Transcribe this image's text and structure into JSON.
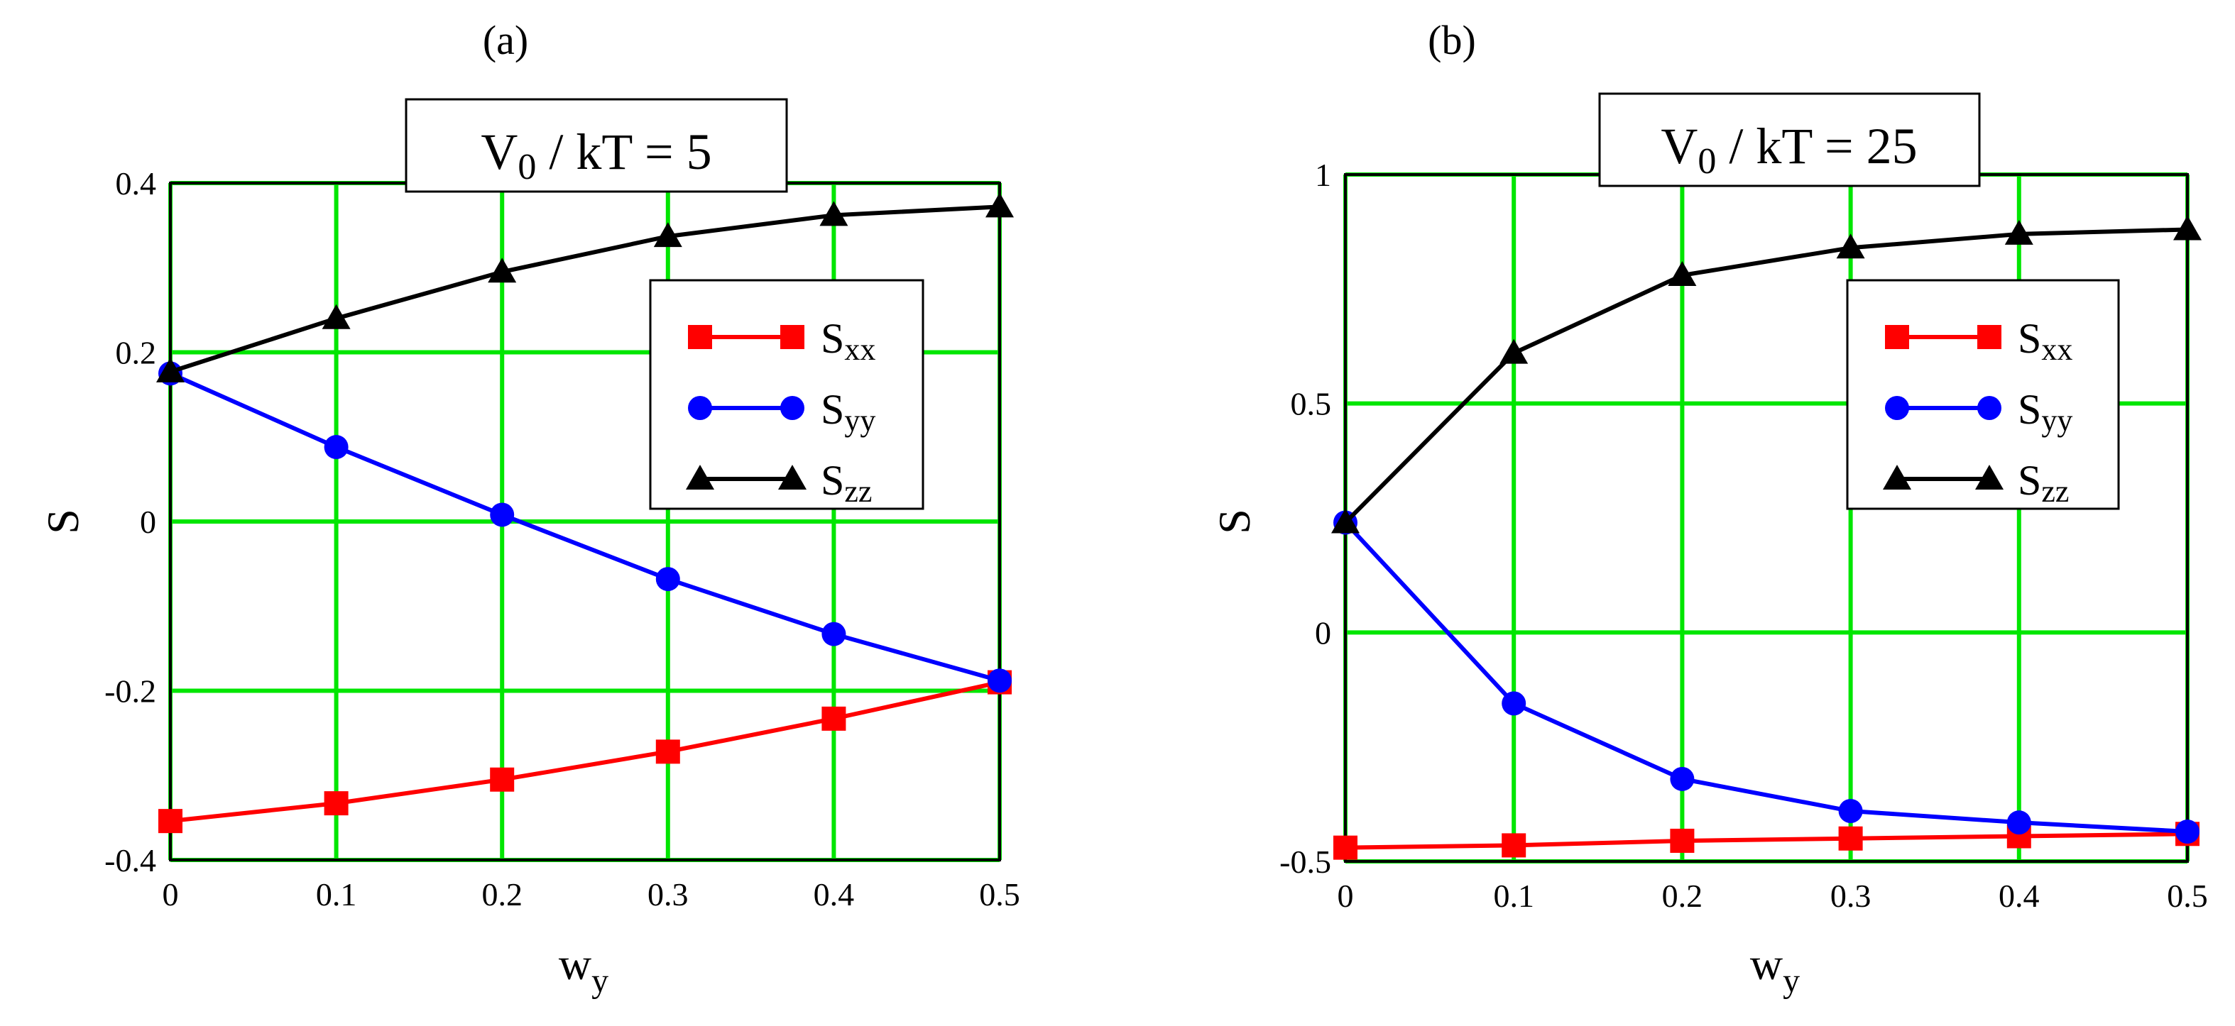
{
  "panels": [
    {
      "panel_label": "(a)",
      "title_main": "V",
      "title_sub": "0",
      "title_rest": " / kT = 5",
      "xlabel_main": "w",
      "xlabel_sub": "y",
      "ylabel": "S"
    },
    {
      "panel_label": "(b)",
      "title_main": "V",
      "title_sub": "0",
      "title_rest": " / kT = 25",
      "xlabel_main": "w",
      "xlabel_sub": "y",
      "ylabel": "S"
    }
  ],
  "legend": [
    {
      "main": "S",
      "sub": "xx"
    },
    {
      "main": "S",
      "sub": "yy"
    },
    {
      "main": "S",
      "sub": "zz"
    }
  ],
  "colors": {
    "grid": "#00e600",
    "s_xx": "#ff0000",
    "s_yy": "#0000ff",
    "s_zz": "#000000"
  },
  "chart_data": [
    {
      "type": "line",
      "x": [
        0,
        0.1,
        0.2,
        0.3,
        0.4,
        0.5
      ],
      "xlim": [
        0,
        0.5
      ],
      "ylim": [
        -0.4,
        0.4
      ],
      "xticks": [
        "0",
        "0.1",
        "0.2",
        "0.3",
        "0.4",
        "0.5"
      ],
      "yticks": [
        "-0.4",
        "-0.2",
        "0",
        "0.2",
        "0.4"
      ],
      "ytick_values": [
        -0.4,
        -0.2,
        0,
        0.2,
        0.4
      ],
      "grid": true,
      "legend_position": "upper-right",
      "series": [
        {
          "name": "S_xx",
          "marker": "square",
          "values": [
            -0.354,
            -0.333,
            -0.305,
            -0.272,
            -0.233,
            -0.19
          ]
        },
        {
          "name": "S_yy",
          "marker": "circle",
          "values": [
            0.175,
            0.088,
            0.008,
            -0.068,
            -0.133,
            -0.188
          ]
        },
        {
          "name": "S_zz",
          "marker": "triangle",
          "values": [
            0.177,
            0.24,
            0.295,
            0.337,
            0.362,
            0.372
          ]
        }
      ]
    },
    {
      "type": "line",
      "x": [
        0,
        0.1,
        0.2,
        0.3,
        0.4,
        0.5
      ],
      "xlim": [
        0,
        0.5
      ],
      "ylim": [
        -0.5,
        1
      ],
      "xticks": [
        "0",
        "0.1",
        "0.2",
        "0.3",
        "0.4",
        "0.5"
      ],
      "yticks": [
        "-0.5",
        "0",
        "0.5",
        "1"
      ],
      "ytick_values": [
        -0.5,
        0,
        0.5,
        1
      ],
      "grid": true,
      "legend_position": "upper-right",
      "series": [
        {
          "name": "S_xx",
          "marker": "square",
          "values": [
            -0.47,
            -0.465,
            -0.455,
            -0.45,
            -0.445,
            -0.44
          ]
        },
        {
          "name": "S_yy",
          "marker": "circle",
          "values": [
            0.24,
            -0.155,
            -0.32,
            -0.39,
            -0.415,
            -0.435
          ]
        },
        {
          "name": "S_zz",
          "marker": "triangle",
          "values": [
            0.24,
            0.61,
            0.78,
            0.84,
            0.87,
            0.88
          ]
        }
      ]
    }
  ]
}
